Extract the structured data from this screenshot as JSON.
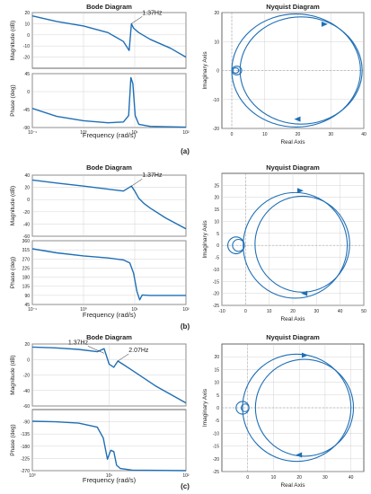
{
  "colors": {
    "line": "#1f6fb5",
    "axis": "#404040",
    "grid": "#c8c8c8",
    "zero": "#999999"
  },
  "chart_data": [
    {
      "type": "line",
      "panel": "a",
      "kind": "bode",
      "title": "Bode Diagram",
      "xlabel": "Frequency  (rad/s)",
      "xscale": "log",
      "xlim": [
        0.1,
        100
      ],
      "xticks": [
        "10⁻¹",
        "10⁰",
        "10¹",
        "10²"
      ],
      "annotations": [
        {
          "text": "1.37Hz",
          "x": 8.6,
          "y": 10
        }
      ],
      "magnitude": {
        "ylabel": "Magnitude (dB)",
        "ylim": [
          -30,
          20
        ],
        "yticks": [
          20,
          10,
          0,
          -10,
          -20
        ],
        "x": [
          0.1,
          0.3,
          1,
          3,
          6,
          7.8,
          8.6,
          9.5,
          12,
          20,
          50,
          100
        ],
        "y": [
          17,
          12,
          8,
          2,
          -6,
          -14,
          10,
          6,
          2,
          -4,
          -12,
          -20
        ]
      },
      "phase": {
        "ylabel": "Phase (deg)",
        "ylim": [
          -90,
          45
        ],
        "yticks": [
          45,
          0,
          -45,
          -90
        ],
        "x": [
          0.1,
          0.3,
          1,
          3,
          6,
          7.6,
          8.4,
          9.2,
          10.2,
          12,
          20,
          100
        ],
        "y": [
          -42,
          -62,
          -73,
          -78,
          -76,
          -60,
          35,
          20,
          -60,
          -82,
          -87,
          -89
        ]
      }
    },
    {
      "type": "scatter",
      "panel": "a",
      "kind": "nyquist",
      "title": "Nyquist Diagram",
      "xlabel": "Real Axis",
      "ylabel": "Imaginary Axis",
      "xlim": [
        -3,
        40
      ],
      "ylim": [
        -20,
        20
      ],
      "xticks": [
        0,
        10,
        20,
        30,
        40
      ],
      "yticks": [
        20,
        10,
        0,
        -10,
        -20
      ],
      "circles": [
        {
          "cx": 19.5,
          "cy": 0,
          "r": 19.5
        },
        {
          "cx": 21,
          "cy": 0,
          "r": 18.5
        },
        {
          "cx": 1.5,
          "cy": 0,
          "r": 1.5
        },
        {
          "cx": 1.2,
          "cy": 0,
          "r": 0.9
        }
      ],
      "arrows": [
        {
          "x": 28,
          "y": 16,
          "dir": "right"
        },
        {
          "x": 20,
          "y": -16.8,
          "dir": "left"
        }
      ]
    },
    {
      "type": "line",
      "panel": "b",
      "kind": "bode",
      "title": "Bode Diagram",
      "xlabel": "Frequency  (rad/s)",
      "xscale": "log",
      "xlim": [
        0.1,
        100
      ],
      "xticks": [
        "10⁻¹",
        "10⁰",
        "10¹",
        "10²"
      ],
      "annotations": [
        {
          "text": "1.37Hz",
          "x": 8.6,
          "y": 22
        }
      ],
      "magnitude": {
        "ylabel": "Magnitude (dB)",
        "ylim": [
          -60,
          40
        ],
        "yticks": [
          40,
          20,
          0,
          -20,
          -40,
          -60
        ],
        "x": [
          0.1,
          0.3,
          1,
          3,
          6,
          8.6,
          10,
          12,
          15,
          20,
          40,
          100
        ],
        "y": [
          32,
          27,
          22,
          17,
          14,
          22,
          14,
          2,
          -6,
          -14,
          -30,
          -48
        ]
      },
      "phase": {
        "ylabel": "Phase (deg)",
        "ylim": [
          45,
          360
        ],
        "yticks": [
          360,
          315,
          270,
          225,
          180,
          135,
          90,
          45
        ],
        "x": [
          0.1,
          0.3,
          1,
          3,
          6,
          8,
          9.5,
          11,
          12.5,
          14,
          20,
          100
        ],
        "y": [
          320,
          300,
          285,
          275,
          265,
          250,
          200,
          110,
          68,
          92,
          90,
          90
        ]
      }
    },
    {
      "type": "scatter",
      "panel": "b",
      "kind": "nyquist",
      "title": "Nyquist Diagram",
      "xlabel": "Real Axis",
      "ylabel": "Imaginary Axis",
      "xlim": [
        -10,
        50
      ],
      "ylim": [
        -25,
        30
      ],
      "xticks": [
        -10,
        0,
        10,
        20,
        30,
        40,
        50
      ],
      "yticks": [
        25,
        20,
        15,
        10,
        5,
        0,
        -5,
        -10,
        -15,
        -20,
        -25
      ],
      "circles": [
        {
          "cx": 21,
          "cy": 0,
          "r": 22
        },
        {
          "cx": 24,
          "cy": 0.5,
          "r": 20
        },
        {
          "cx": -4,
          "cy": 0,
          "r": 3.5
        },
        {
          "cx": -3,
          "cy": 0,
          "r": 2.5
        }
      ],
      "arrows": [
        {
          "x": 23,
          "y": 22.8,
          "dir": "right"
        },
        {
          "x": 25,
          "y": -20,
          "dir": "left"
        }
      ]
    },
    {
      "type": "line",
      "panel": "c",
      "kind": "bode",
      "title": "Bode Diagram",
      "xlabel": "Frequency  (rad/s)",
      "xscale": "log",
      "xlim": [
        1,
        100
      ],
      "xticks": [
        "10⁰",
        "10¹",
        "10²"
      ],
      "annotations": [
        {
          "text": "1.37Hz",
          "x": 8.6,
          "y": 8
        },
        {
          "text": "2.07Hz",
          "x": 13,
          "y": -2
        }
      ],
      "magnitude": {
        "ylabel": "Magnitude (dB)",
        "ylim": [
          -60,
          20
        ],
        "yticks": [
          20,
          0,
          -20,
          -40,
          -60
        ],
        "x": [
          1,
          2,
          4,
          7,
          8.6,
          10,
          11.5,
          13,
          15,
          20,
          40,
          100
        ],
        "y": [
          16,
          15,
          13,
          10,
          14,
          -6,
          -10,
          -2,
          -6,
          -14,
          -34,
          -56
        ]
      },
      "phase": {
        "ylabel": "Phase (deg)",
        "ylim": [
          -270,
          -45
        ],
        "yticks": [
          -90,
          -135,
          -180,
          -225,
          -270
        ],
        "x": [
          1,
          2,
          4,
          7,
          8.4,
          9.5,
          10.5,
          11.5,
          12.5,
          14,
          20,
          100
        ],
        "y": [
          -88,
          -90,
          -95,
          -110,
          -150,
          -228,
          -195,
          -200,
          -250,
          -262,
          -268,
          -270
        ]
      }
    },
    {
      "type": "scatter",
      "panel": "c",
      "kind": "nyquist",
      "title": "Nyquist Diagram",
      "xlabel": "Real Axis",
      "ylabel": "Imaginary Axis",
      "xlim": [
        -10,
        45
      ],
      "ylim": [
        -25,
        25
      ],
      "xticks": [
        0,
        10,
        20,
        30,
        40
      ],
      "yticks": [
        20,
        15,
        10,
        5,
        0,
        -5,
        -10,
        -15,
        -20,
        -25
      ],
      "circles": [
        {
          "cx": 19,
          "cy": 0,
          "r": 21
        },
        {
          "cx": 22,
          "cy": 0,
          "r": 19
        },
        {
          "cx": -2,
          "cy": 0,
          "r": 2.5
        },
        {
          "cx": -1,
          "cy": 0,
          "r": 1.5
        }
      ],
      "arrows": [
        {
          "x": 22,
          "y": 20.6,
          "dir": "right"
        },
        {
          "x": 20,
          "y": -18.5,
          "dir": "left"
        }
      ]
    }
  ],
  "panel_labels": [
    "(a)",
    "(b)",
    "(c)"
  ]
}
